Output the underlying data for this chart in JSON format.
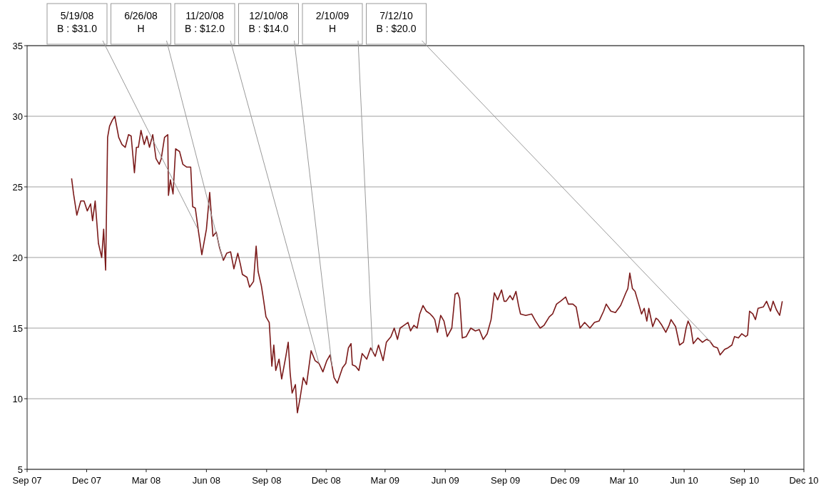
{
  "chart_data": {
    "type": "line",
    "xlim": [
      "2007-09-01",
      "2010-12-01"
    ],
    "ylim": [
      5,
      35
    ],
    "yticks": [
      5,
      10,
      15,
      20,
      25,
      30,
      35
    ],
    "xticks": [
      {
        "value": "2007-09-01",
        "label": "Sep 07"
      },
      {
        "value": "2007-12-01",
        "label": "Dec 07"
      },
      {
        "value": "2008-03-01",
        "label": "Mar 08"
      },
      {
        "value": "2008-06-01",
        "label": "Jun 08"
      },
      {
        "value": "2008-09-01",
        "label": "Sep 08"
      },
      {
        "value": "2008-12-01",
        "label": "Dec 08"
      },
      {
        "value": "2009-03-01",
        "label": "Mar 09"
      },
      {
        "value": "2009-06-01",
        "label": "Jun 09"
      },
      {
        "value": "2009-09-01",
        "label": "Sep 09"
      },
      {
        "value": "2009-12-01",
        "label": "Dec 09"
      },
      {
        "value": "2010-03-01",
        "label": "Mar 10"
      },
      {
        "value": "2010-06-01",
        "label": "Jun 10"
      },
      {
        "value": "2010-09-01",
        "label": "Sep 10"
      },
      {
        "value": "2010-12-01",
        "label": "Dec 10"
      }
    ],
    "grid": "y",
    "marker": "none",
    "line_style": "solid",
    "x": [
      "2007-11-08",
      "2007-11-11",
      "2007-11-16",
      "2007-11-22",
      "2007-11-27",
      "2007-12-02",
      "2007-12-07",
      "2007-12-10",
      "2007-12-14",
      "2007-12-19",
      "2007-12-24",
      "2007-12-27",
      "2007-12-30",
      "2008-01-02",
      "2008-01-05",
      "2008-01-09",
      "2008-01-13",
      "2008-01-19",
      "2008-01-24",
      "2008-01-29",
      "2008-02-03",
      "2008-02-07",
      "2008-02-12",
      "2008-02-15",
      "2008-02-18",
      "2008-02-22",
      "2008-02-27",
      "2008-03-02",
      "2008-03-06",
      "2008-03-11",
      "2008-03-16",
      "2008-03-21",
      "2008-03-24",
      "2008-03-29",
      "2008-04-03",
      "2008-04-04",
      "2008-04-07",
      "2008-04-11",
      "2008-04-15",
      "2008-04-21",
      "2008-04-26",
      "2008-05-02",
      "2008-05-08",
      "2008-05-11",
      "2008-05-15",
      "2008-05-20",
      "2008-05-25",
      "2008-06-01",
      "2008-06-06",
      "2008-06-11",
      "2008-06-16",
      "2008-06-21",
      "2008-06-27",
      "2008-07-02",
      "2008-07-08",
      "2008-07-13",
      "2008-07-19",
      "2008-07-23",
      "2008-07-26",
      "2008-08-02",
      "2008-08-06",
      "2008-08-12",
      "2008-08-16",
      "2008-08-19",
      "2008-08-24",
      "2008-08-27",
      "2008-08-31",
      "2008-09-05",
      "2008-09-09",
      "2008-09-12",
      "2008-09-15",
      "2008-09-20",
      "2008-09-24",
      "2008-09-30",
      "2008-10-04",
      "2008-10-07",
      "2008-10-10",
      "2008-10-15",
      "2008-10-18",
      "2008-10-22",
      "2008-10-27",
      "2008-11-01",
      "2008-11-08",
      "2008-11-14",
      "2008-11-20",
      "2008-11-26",
      "2008-12-02",
      "2008-12-07",
      "2008-12-13",
      "2008-12-18",
      "2008-12-26",
      "2008-12-31",
      "2009-01-04",
      "2009-01-08",
      "2009-01-10",
      "2009-01-15",
      "2009-01-20",
      "2009-01-25",
      "2009-02-01",
      "2009-02-07",
      "2009-02-14",
      "2009-02-19",
      "2009-02-26",
      "2009-03-03",
      "2009-03-10",
      "2009-03-15",
      "2009-03-20",
      "2009-03-24",
      "2009-03-30",
      "2009-04-05",
      "2009-04-09",
      "2009-04-14",
      "2009-04-19",
      "2009-04-23",
      "2009-04-28",
      "2009-05-03",
      "2009-05-09",
      "2009-05-13",
      "2009-05-16",
      "2009-05-20",
      "2009-05-25",
      "2009-05-30",
      "2009-06-04",
      "2009-06-11",
      "2009-06-16",
      "2009-06-20",
      "2009-06-23",
      "2009-06-27",
      "2009-07-03",
      "2009-07-10",
      "2009-07-17",
      "2009-07-23",
      "2009-07-29",
      "2009-08-04",
      "2009-08-10",
      "2009-08-15",
      "2009-08-20",
      "2009-08-26",
      "2009-08-30",
      "2009-09-02",
      "2009-09-08",
      "2009-09-12",
      "2009-09-17",
      "2009-09-21",
      "2009-09-24",
      "2009-10-02",
      "2009-10-11",
      "2009-10-17",
      "2009-10-24",
      "2009-10-30",
      "2009-11-07",
      "2009-11-12",
      "2009-11-18",
      "2009-11-24",
      "2009-12-02",
      "2009-12-06",
      "2009-12-13",
      "2009-12-18",
      "2009-12-24",
      "2009-12-31",
      "2010-01-08",
      "2010-01-15",
      "2010-01-22",
      "2010-01-29",
      "2010-02-02",
      "2010-02-09",
      "2010-02-16",
      "2010-02-24",
      "2010-03-04",
      "2010-03-07",
      "2010-03-10",
      "2010-03-14",
      "2010-03-18",
      "2010-03-23",
      "2010-03-28",
      "2010-04-01",
      "2010-04-05",
      "2010-04-08",
      "2010-04-14",
      "2010-04-19",
      "2010-04-22",
      "2010-04-28",
      "2010-05-04",
      "2010-05-09",
      "2010-05-12",
      "2010-05-19",
      "2010-05-25",
      "2010-05-31",
      "2010-06-04",
      "2010-06-07",
      "2010-06-11",
      "2010-06-15",
      "2010-06-22",
      "2010-06-29",
      "2010-07-05",
      "2010-07-10",
      "2010-07-16",
      "2010-07-22",
      "2010-07-26",
      "2010-08-02",
      "2010-08-07",
      "2010-08-13",
      "2010-08-17",
      "2010-08-23",
      "2010-08-28",
      "2010-09-03",
      "2010-09-06",
      "2010-09-09",
      "2010-09-14",
      "2010-09-18",
      "2010-09-22",
      "2010-09-30",
      "2010-10-05",
      "2010-10-11",
      "2010-10-15",
      "2010-10-20",
      "2010-10-25",
      "2010-10-27",
      "2010-10-29"
    ],
    "series": [
      {
        "color": "#7b1a1a",
        "values": [
          25.6,
          24.5,
          23.0,
          24.0,
          24.0,
          23.3,
          23.8,
          22.6,
          24.0,
          21.0,
          20.0,
          22.0,
          19.1,
          28.5,
          29.3,
          29.7,
          30.0,
          28.5,
          28.0,
          27.8,
          28.7,
          28.6,
          26.0,
          27.8,
          27.8,
          29.0,
          28.0,
          28.6,
          27.8,
          28.7,
          27.0,
          26.6,
          27.0,
          28.5,
          28.7,
          24.4,
          25.5,
          24.5,
          27.7,
          27.5,
          26.6,
          26.4,
          26.4,
          23.6,
          23.5,
          21.8,
          20.2,
          22.0,
          24.6,
          21.5,
          21.8,
          20.7,
          19.8,
          20.3,
          20.4,
          19.2,
          20.3,
          19.5,
          18.8,
          18.6,
          17.9,
          18.3,
          20.8,
          19.0,
          18.0,
          17.1,
          15.8,
          15.4,
          12.3,
          13.8,
          12.0,
          12.8,
          11.4,
          12.9,
          14.0,
          11.8,
          10.4,
          11.0,
          9.0,
          10.0,
          11.5,
          11.0,
          13.4,
          12.7,
          12.5,
          11.9,
          12.7,
          13.1,
          11.5,
          11.1,
          12.2,
          12.5,
          13.6,
          13.9,
          12.4,
          12.3,
          12.0,
          13.2,
          12.8,
          13.6,
          13.0,
          13.8,
          12.7,
          14.0,
          14.4,
          15.0,
          14.2,
          15.0,
          15.2,
          15.4,
          14.8,
          15.2,
          15.0,
          16.0,
          16.6,
          16.2,
          16.0,
          15.8,
          15.6,
          14.7,
          15.9,
          15.5,
          14.4,
          15.0,
          17.4,
          17.5,
          17.1,
          14.3,
          14.4,
          15.0,
          14.8,
          14.9,
          14.2,
          14.6,
          15.6,
          17.5,
          17.0,
          17.7,
          16.9,
          16.9,
          17.3,
          17.0,
          17.6,
          16.6,
          16.0,
          15.9,
          16.0,
          15.5,
          15.0,
          15.2,
          15.8,
          16.0,
          16.7,
          16.9,
          17.2,
          16.7,
          16.7,
          16.5,
          15.0,
          15.4,
          15.0,
          15.4,
          15.5,
          16.2,
          16.7,
          16.2,
          16.1,
          16.6,
          17.5,
          17.8,
          18.9,
          17.8,
          17.6,
          16.8,
          16.0,
          16.4,
          15.5,
          16.4,
          15.1,
          15.7,
          15.6,
          15.2,
          14.7,
          15.2,
          15.6,
          15.1,
          13.8,
          14.0,
          15.0,
          15.5,
          15.1,
          13.9,
          14.3,
          14.0,
          14.2,
          14.1,
          13.7,
          13.6,
          13.1,
          13.5,
          13.6,
          13.8,
          14.4,
          14.3,
          14.6,
          14.4,
          14.5,
          16.2,
          16.0,
          15.6,
          16.4,
          16.5,
          16.9,
          16.2,
          16.9,
          16.3,
          15.9,
          16.4,
          16.9
        ]
      }
    ],
    "annotations": [
      {
        "text": "5/19/08\nB : $31.0",
        "x": "2008-05-19",
        "y": 22.0
      },
      {
        "text": "6/26/08\nH",
        "x": "2008-06-26",
        "y": 19.9
      },
      {
        "text": "11/20/08\nB : $12.0",
        "x": "2008-11-20",
        "y": 12.5
      },
      {
        "text": "12/10/08\nB : $14.0",
        "x": "2008-12-10",
        "y": 12.3
      },
      {
        "text": "2/10/09\nH",
        "x": "2009-02-10",
        "y": 13.3
      },
      {
        "text": "7/12/10\nB : $20.0",
        "x": "2010-07-12",
        "y": 14.0
      }
    ]
  }
}
